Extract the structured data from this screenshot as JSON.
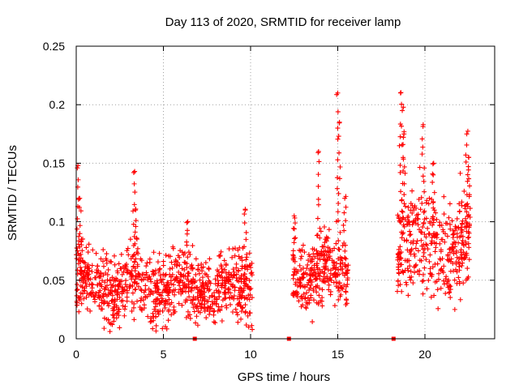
{
  "chart_data": {
    "type": "scatter",
    "title": "Day 113 of 2020, SRMTID for receiver lamp",
    "xlabel": "GPS time / hours",
    "ylabel": "SRMTID / TECUs",
    "xlim": [
      0,
      24
    ],
    "ylim": [
      0,
      0.25
    ],
    "xticks": [
      0,
      5,
      10,
      15,
      20
    ],
    "xtick_labels": [
      "0",
      "5",
      "10",
      "15",
      "20"
    ],
    "yticks": [
      0,
      0.05,
      0.1,
      0.15,
      0.2,
      0.25
    ],
    "ytick_labels": [
      "0",
      "0.05",
      "0.1",
      "0.15",
      "0.2",
      "0.25"
    ],
    "grid": true,
    "marker": "+",
    "color": "#ff0000",
    "series": [
      {
        "name": "SRMTID",
        "segments": [
          {
            "x_start": 0.0,
            "x_end": 10.1,
            "baseline": 0.045,
            "spread": 0.02,
            "spikes": [
              [
                0.1,
                0.148
              ],
              [
                0.2,
                0.12
              ],
              [
                0.3,
                0.085
              ],
              [
                3.3,
                0.142
              ],
              [
                3.4,
                0.11
              ],
              [
                6.4,
                0.1
              ],
              [
                9.7,
                0.11
              ]
            ]
          },
          {
            "x_start": 12.4,
            "x_end": 15.6,
            "baseline": 0.055,
            "spread": 0.02,
            "spikes": [
              [
                12.5,
                0.105
              ],
              [
                13.9,
                0.16
              ],
              [
                14.3,
                0.085
              ],
              [
                15.0,
                0.21
              ],
              [
                15.1,
                0.185
              ],
              [
                15.4,
                0.12
              ]
            ]
          },
          {
            "x_start": 18.4,
            "x_end": 22.6,
            "baseline": 0.08,
            "spread": 0.03,
            "spikes": [
              [
                18.6,
                0.21
              ],
              [
                18.7,
                0.195
              ],
              [
                18.8,
                0.175
              ],
              [
                19.9,
                0.183
              ],
              [
                20.5,
                0.15
              ],
              [
                22.4,
                0.175
              ],
              [
                22.5,
                0.155
              ]
            ]
          }
        ]
      }
    ],
    "zero_markers_x": [
      6.8,
      12.2,
      18.2
    ]
  }
}
